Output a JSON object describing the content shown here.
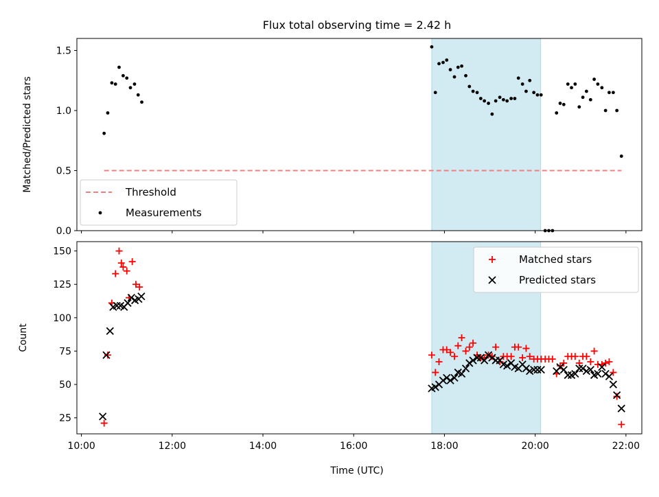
{
  "chart_data": [
    {
      "type": "scatter",
      "title": "Flux total observing time = 2.42 h",
      "xlabel": "",
      "ylabel": "Matched/Predicted stars",
      "ylim": [
        0,
        1.6
      ],
      "yticks": [
        0.0,
        0.5,
        1.0,
        1.5
      ],
      "ytick_labels": [
        "0.0",
        "0.5",
        "1.0",
        "1.5"
      ],
      "x_unit": "hours UTC",
      "xlim": [
        9.9,
        22.35
      ],
      "xticks": [
        10,
        12,
        14,
        16,
        18,
        20,
        22
      ],
      "shaded_interval": [
        17.72,
        20.12
      ],
      "shade_color": "#add8e6",
      "grid": false,
      "legend": {
        "placement": "lower-left",
        "entries": [
          {
            "label": "Threshold",
            "marker": "dashed-line",
            "color": "#f08080"
          },
          {
            "label": "Measurements",
            "marker": "dot",
            "color": "#000000"
          }
        ]
      },
      "threshold": {
        "name": "Threshold",
        "x": [
          10.5,
          21.9
        ],
        "y": 0.5,
        "color": "#f08080"
      },
      "series": [
        {
          "name": "Measurements",
          "color": "#000000",
          "x": [
            10.5,
            10.58,
            10.67,
            10.75,
            10.83,
            10.92,
            11.0,
            11.08,
            11.17,
            11.25,
            11.33,
            17.72,
            17.8,
            17.88,
            17.97,
            18.05,
            18.13,
            18.22,
            18.3,
            18.38,
            18.47,
            18.55,
            18.63,
            18.72,
            18.8,
            18.88,
            18.97,
            19.05,
            19.13,
            19.22,
            19.3,
            19.38,
            19.47,
            19.55,
            19.63,
            19.72,
            19.8,
            19.88,
            19.97,
            20.05,
            20.13,
            20.22,
            20.3,
            20.38,
            20.47,
            20.55,
            20.63,
            20.72,
            20.8,
            20.88,
            20.97,
            21.05,
            21.13,
            21.22,
            21.3,
            21.38,
            21.47,
            21.55,
            21.63,
            21.72,
            21.8,
            21.9
          ],
          "y": [
            0.81,
            0.98,
            1.23,
            1.22,
            1.36,
            1.29,
            1.27,
            1.19,
            1.22,
            1.13,
            1.07,
            1.53,
            1.15,
            1.39,
            1.4,
            1.42,
            1.34,
            1.28,
            1.36,
            1.37,
            1.29,
            1.2,
            1.16,
            1.15,
            1.1,
            1.08,
            1.06,
            0.97,
            1.08,
            1.11,
            1.09,
            1.08,
            1.1,
            1.1,
            1.27,
            1.22,
            1.16,
            1.25,
            1.15,
            1.13,
            1.13,
            0.0,
            0.0,
            0.0,
            0.98,
            1.06,
            1.05,
            1.22,
            1.19,
            1.22,
            1.03,
            1.11,
            1.16,
            1.09,
            1.26,
            1.22,
            1.19,
            1.0,
            1.15,
            1.15,
            1.0,
            0.62
          ]
        }
      ]
    },
    {
      "type": "scatter",
      "title": "",
      "xlabel": "Time (UTC)",
      "ylabel": "Count",
      "ylim": [
        13,
        157
      ],
      "yticks": [
        25,
        50,
        75,
        100,
        125,
        150
      ],
      "ytick_labels": [
        "25",
        "50",
        "75",
        "100",
        "125",
        "150"
      ],
      "x_unit": "hours UTC",
      "xlim": [
        9.9,
        22.35
      ],
      "xticks": [
        10,
        12,
        14,
        16,
        18,
        20,
        22
      ],
      "xtick_labels": [
        "10:00",
        "12:00",
        "14:00",
        "16:00",
        "18:00",
        "20:00",
        "22:00"
      ],
      "shaded_interval": [
        17.72,
        20.12
      ],
      "shade_color": "#add8e6",
      "grid": false,
      "legend": {
        "placement": "top-right",
        "entries": [
          {
            "label": "Matched stars",
            "marker": "plus",
            "color": "#ff0000"
          },
          {
            "label": "Predicted stars",
            "marker": "x",
            "color": "#000000"
          }
        ]
      },
      "series": [
        {
          "name": "Matched stars",
          "marker": "plus",
          "color": "#ff0000",
          "x": [
            10.5,
            10.58,
            10.67,
            10.75,
            10.83,
            10.88,
            10.92,
            11.0,
            11.05,
            11.12,
            11.2,
            11.28,
            17.72,
            17.8,
            17.88,
            17.97,
            18.05,
            18.13,
            18.22,
            18.3,
            18.38,
            18.47,
            18.55,
            18.63,
            18.72,
            18.8,
            18.88,
            18.97,
            19.05,
            19.13,
            19.22,
            19.3,
            19.38,
            19.47,
            19.55,
            19.63,
            19.72,
            19.8,
            19.88,
            19.97,
            20.05,
            20.13,
            20.22,
            20.3,
            20.38,
            20.47,
            20.55,
            20.63,
            20.72,
            20.8,
            20.88,
            20.97,
            21.05,
            21.13,
            21.22,
            21.3,
            21.38,
            21.47,
            21.55,
            21.63,
            21.72,
            21.8,
            21.9
          ],
          "y": [
            21,
            72,
            111,
            133,
            150,
            141,
            138,
            135,
            115,
            142,
            125,
            123,
            72,
            59,
            67,
            76,
            76,
            74,
            71,
            79,
            85,
            75,
            78,
            81,
            72,
            70,
            70,
            72,
            71,
            78,
            67,
            71,
            71,
            71,
            78,
            78,
            70,
            77,
            71,
            69,
            69,
            69,
            69,
            69,
            69,
            58,
            64,
            66,
            71,
            71,
            71,
            66,
            71,
            71,
            67,
            75,
            65,
            65,
            66,
            67,
            59,
            41,
            20
          ]
        },
        {
          "name": "Predicted stars",
          "marker": "x",
          "color": "#000000",
          "x": [
            10.47,
            10.55,
            10.63,
            10.7,
            10.78,
            10.86,
            10.94,
            11.02,
            11.1,
            11.18,
            11.26,
            11.32,
            17.72,
            17.8,
            17.88,
            17.97,
            18.05,
            18.13,
            18.22,
            18.3,
            18.38,
            18.47,
            18.55,
            18.63,
            18.72,
            18.8,
            18.88,
            18.97,
            19.05,
            19.13,
            19.22,
            19.3,
            19.38,
            19.47,
            19.55,
            19.63,
            19.72,
            19.8,
            19.88,
            19.97,
            20.05,
            20.13,
            20.47,
            20.55,
            20.63,
            20.72,
            20.8,
            20.88,
            20.97,
            21.05,
            21.13,
            21.22,
            21.3,
            21.38,
            21.47,
            21.55,
            21.63,
            21.72,
            21.8,
            21.9
          ],
          "y": [
            26,
            72,
            90,
            108,
            109,
            109,
            108,
            111,
            115,
            113,
            114,
            116,
            47,
            48,
            50,
            53,
            55,
            53,
            55,
            59,
            58,
            62,
            66,
            68,
            70,
            70,
            68,
            72,
            70,
            68,
            68,
            65,
            64,
            66,
            63,
            62,
            65,
            62,
            60,
            61,
            61,
            61,
            60,
            63,
            61,
            57,
            57,
            58,
            62,
            62,
            60,
            61,
            57,
            58,
            63,
            58,
            56,
            50,
            42,
            32
          ]
        }
      ]
    }
  ]
}
